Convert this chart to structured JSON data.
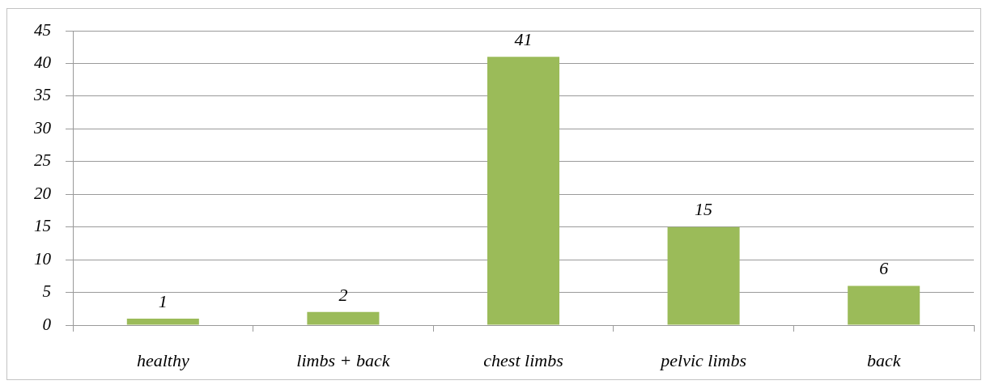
{
  "chart_data": {
    "type": "bar",
    "categories": [
      "healthy",
      "limbs + back",
      "chest limbs",
      "pelvic limbs",
      "back"
    ],
    "values": [
      1,
      2,
      41,
      15,
      6
    ],
    "color": "#9bbb59",
    "ylim": [
      0,
      45
    ],
    "yticks": [
      0,
      5,
      10,
      15,
      20,
      25,
      30,
      35,
      40,
      45
    ],
    "grid": "y",
    "data_labels": true
  }
}
